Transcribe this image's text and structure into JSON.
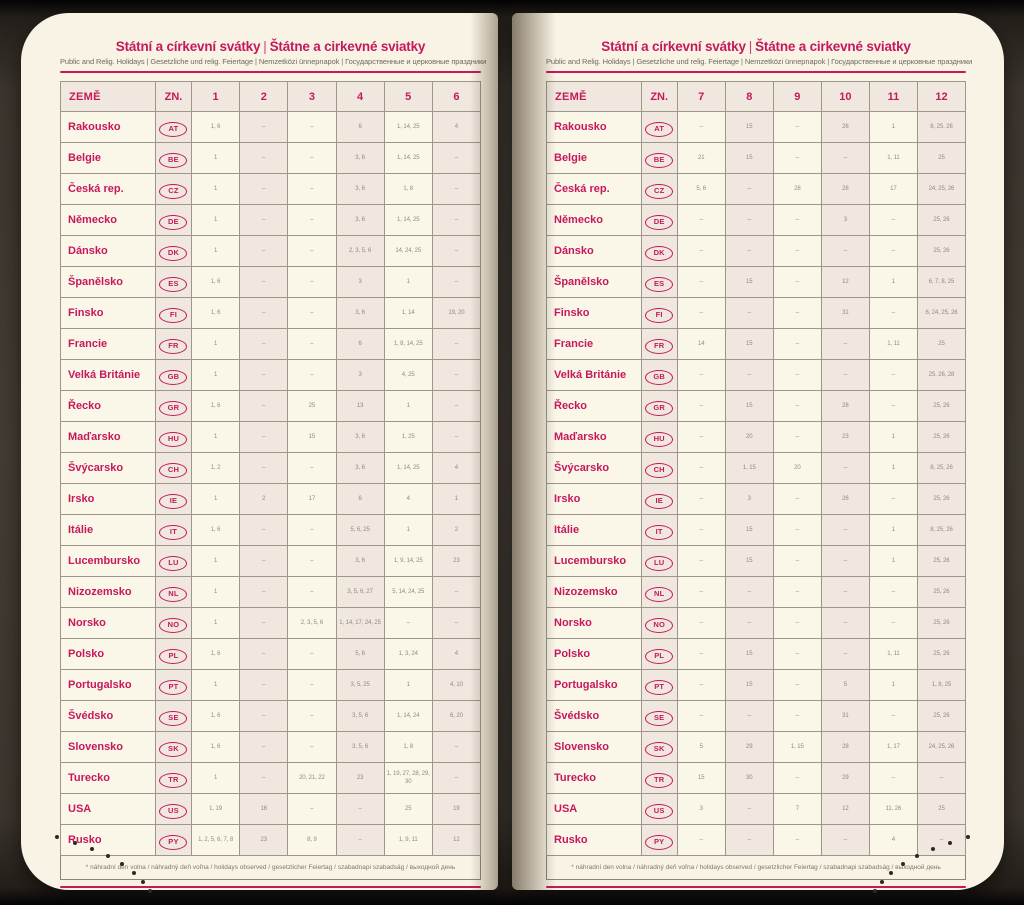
{
  "header": {
    "title_cz": "Státní a církevní svátky",
    "title_separator": "|",
    "title_sk": "Štátne a cirkevné sviatky",
    "subtitle": "Public and Relig. Holidays | Gesetzliche und relig. Feiertage | Nemzetközi ünnepnapok | Государственные и церковные праздники"
  },
  "table": {
    "col_country": "ZEMĚ",
    "col_code": "ZN."
  },
  "footnote": "* náhradní den volna / náhradný deň voľna / holidays observed / gesetzlicher Feiertag / szabadnapi szabadság / выходной день",
  "colors": {
    "accent": "#c5195c",
    "page": "#f8f3e4",
    "cell_light": "#faf6e8",
    "cell_shade": "#f0e7df",
    "value_text": "#8e8b83"
  },
  "left_page": {
    "months": [
      "1",
      "2",
      "3",
      "4",
      "5",
      "6"
    ],
    "rows": [
      {
        "country": "Rakousko",
        "code": "AT",
        "values": [
          "1, 6",
          "–",
          "–",
          "6",
          "1, 14, 25",
          "4"
        ]
      },
      {
        "country": "Belgie",
        "code": "BE",
        "values": [
          "1",
          "–",
          "–",
          "3, 6",
          "1, 14, 25",
          "–"
        ]
      },
      {
        "country": "Česká rep.",
        "code": "CZ",
        "values": [
          "1",
          "–",
          "–",
          "3, 6",
          "1, 8",
          "–"
        ]
      },
      {
        "country": "Německo",
        "code": "DE",
        "values": [
          "1",
          "–",
          "–",
          "3, 6",
          "1, 14, 25",
          "–"
        ]
      },
      {
        "country": "Dánsko",
        "code": "DK",
        "values": [
          "1",
          "–",
          "–",
          "2, 3, 5, 6",
          "14, 24, 25",
          "–"
        ]
      },
      {
        "country": "Španělsko",
        "code": "ES",
        "values": [
          "1, 6",
          "–",
          "–",
          "3",
          "1",
          "–"
        ]
      },
      {
        "country": "Finsko",
        "code": "FI",
        "values": [
          "1, 6",
          "–",
          "–",
          "3, 6",
          "1, 14",
          "19, 20"
        ]
      },
      {
        "country": "Francie",
        "code": "FR",
        "values": [
          "1",
          "–",
          "–",
          "6",
          "1, 8, 14, 25",
          "–"
        ]
      },
      {
        "country": "Velká Británie",
        "code": "GB",
        "values": [
          "1",
          "–",
          "–",
          "3",
          "4, 25",
          "–"
        ]
      },
      {
        "country": "Řecko",
        "code": "GR",
        "values": [
          "1, 6",
          "–",
          "25",
          "13",
          "1",
          "–"
        ]
      },
      {
        "country": "Maďarsko",
        "code": "HU",
        "values": [
          "1",
          "–",
          "15",
          "3, 6",
          "1, 25",
          "–"
        ]
      },
      {
        "country": "Švýcarsko",
        "code": "CH",
        "values": [
          "1, 2",
          "–",
          "–",
          "3, 6",
          "1, 14, 25",
          "4"
        ]
      },
      {
        "country": "Irsko",
        "code": "IE",
        "values": [
          "1",
          "2",
          "17",
          "6",
          "4",
          "1"
        ]
      },
      {
        "country": "Itálie",
        "code": "IT",
        "values": [
          "1, 6",
          "–",
          "–",
          "5, 6, 25",
          "1",
          "2"
        ]
      },
      {
        "country": "Lucembursko",
        "code": "LU",
        "values": [
          "1",
          "–",
          "–",
          "3, 6",
          "1, 9, 14, 25",
          "23"
        ]
      },
      {
        "country": "Nizozemsko",
        "code": "NL",
        "values": [
          "1",
          "–",
          "–",
          "3, 5, 6, 27",
          "5, 14, 24, 25",
          "–"
        ]
      },
      {
        "country": "Norsko",
        "code": "NO",
        "values": [
          "1",
          "–",
          "2, 3, 5, 6",
          "1, 14, 17, 24, 25",
          "–",
          "–"
        ]
      },
      {
        "country": "Polsko",
        "code": "PL",
        "values": [
          "1, 6",
          "–",
          "–",
          "5, 6",
          "1, 3, 24",
          "4"
        ]
      },
      {
        "country": "Portugalsko",
        "code": "PT",
        "values": [
          "1",
          "–",
          "–",
          "3, 5, 25",
          "1",
          "4, 10"
        ]
      },
      {
        "country": "Švédsko",
        "code": "SE",
        "values": [
          "1, 6",
          "–",
          "–",
          "3, 5, 6",
          "1, 14, 24",
          "6, 20"
        ]
      },
      {
        "country": "Slovensko",
        "code": "SK",
        "values": [
          "1, 6",
          "–",
          "–",
          "3, 5, 6",
          "1, 8",
          "–"
        ]
      },
      {
        "country": "Turecko",
        "code": "TR",
        "values": [
          "1",
          "–",
          "20, 21, 22",
          "23",
          "1, 19, 27, 28, 29, 30",
          "–"
        ]
      },
      {
        "country": "USA",
        "code": "US",
        "values": [
          "1, 19",
          "16",
          "–",
          "–",
          "25",
          "19"
        ]
      },
      {
        "country": "Rusko",
        "code": "PY",
        "values": [
          "1, 2, 5, 6, 7, 8",
          "23",
          "8, 9",
          "–",
          "1, 9, 11",
          "12"
        ]
      }
    ]
  },
  "right_page": {
    "months": [
      "7",
      "8",
      "9",
      "10",
      "11",
      "12"
    ],
    "rows": [
      {
        "country": "Rakousko",
        "code": "AT",
        "values": [
          "–",
          "15",
          "–",
          "26",
          "1",
          "8, 25, 26"
        ]
      },
      {
        "country": "Belgie",
        "code": "BE",
        "values": [
          "21",
          "15",
          "–",
          "–",
          "1, 11",
          "25"
        ]
      },
      {
        "country": "Česká rep.",
        "code": "CZ",
        "values": [
          "5, 6",
          "–",
          "28",
          "28",
          "17",
          "24, 25, 26"
        ]
      },
      {
        "country": "Německo",
        "code": "DE",
        "values": [
          "–",
          "–",
          "–",
          "3",
          "–",
          "25, 26"
        ]
      },
      {
        "country": "Dánsko",
        "code": "DK",
        "values": [
          "–",
          "–",
          "–",
          "–",
          "–",
          "25, 26"
        ]
      },
      {
        "country": "Španělsko",
        "code": "ES",
        "values": [
          "–",
          "15",
          "–",
          "12",
          "1",
          "6, 7, 8, 25"
        ]
      },
      {
        "country": "Finsko",
        "code": "FI",
        "values": [
          "–",
          "–",
          "–",
          "31",
          "–",
          "6, 24, 25, 26"
        ]
      },
      {
        "country": "Francie",
        "code": "FR",
        "values": [
          "14",
          "15",
          "–",
          "–",
          "1, 11",
          "25"
        ]
      },
      {
        "country": "Velká Británie",
        "code": "GB",
        "values": [
          "–",
          "–",
          "–",
          "–",
          "–",
          "25, 26, 28"
        ]
      },
      {
        "country": "Řecko",
        "code": "GR",
        "values": [
          "–",
          "15",
          "–",
          "28",
          "–",
          "25, 26"
        ]
      },
      {
        "country": "Maďarsko",
        "code": "HU",
        "values": [
          "–",
          "20",
          "–",
          "23",
          "1",
          "25, 26"
        ]
      },
      {
        "country": "Švýcarsko",
        "code": "CH",
        "values": [
          "–",
          "1, 15",
          "20",
          "–",
          "1",
          "8, 25, 26"
        ]
      },
      {
        "country": "Irsko",
        "code": "IE",
        "values": [
          "–",
          "3",
          "–",
          "26",
          "–",
          "25, 26"
        ]
      },
      {
        "country": "Itálie",
        "code": "IT",
        "values": [
          "–",
          "15",
          "–",
          "–",
          "1",
          "8, 25, 26"
        ]
      },
      {
        "country": "Lucembursko",
        "code": "LU",
        "values": [
          "–",
          "15",
          "–",
          "–",
          "1",
          "25, 26"
        ]
      },
      {
        "country": "Nizozemsko",
        "code": "NL",
        "values": [
          "–",
          "–",
          "–",
          "–",
          "–",
          "25, 26"
        ]
      },
      {
        "country": "Norsko",
        "code": "NO",
        "values": [
          "–",
          "–",
          "–",
          "–",
          "–",
          "25, 26"
        ]
      },
      {
        "country": "Polsko",
        "code": "PL",
        "values": [
          "–",
          "15",
          "–",
          "–",
          "1, 11",
          "25, 26"
        ]
      },
      {
        "country": "Portugalsko",
        "code": "PT",
        "values": [
          "–",
          "15",
          "–",
          "5",
          "1",
          "1, 8, 25"
        ]
      },
      {
        "country": "Švédsko",
        "code": "SE",
        "values": [
          "–",
          "–",
          "–",
          "31",
          "–",
          "25, 26"
        ]
      },
      {
        "country": "Slovensko",
        "code": "SK",
        "values": [
          "5",
          "29",
          "1, 15",
          "28",
          "1, 17",
          "24, 25, 26"
        ]
      },
      {
        "country": "Turecko",
        "code": "TR",
        "values": [
          "15",
          "30",
          "–",
          "29",
          "–",
          "–"
        ]
      },
      {
        "country": "USA",
        "code": "US",
        "values": [
          "3",
          "–",
          "7",
          "12",
          "11, 26",
          "25"
        ]
      },
      {
        "country": "Rusko",
        "code": "PY",
        "values": [
          "–",
          "–",
          "–",
          "–",
          "4",
          "–"
        ]
      }
    ]
  }
}
